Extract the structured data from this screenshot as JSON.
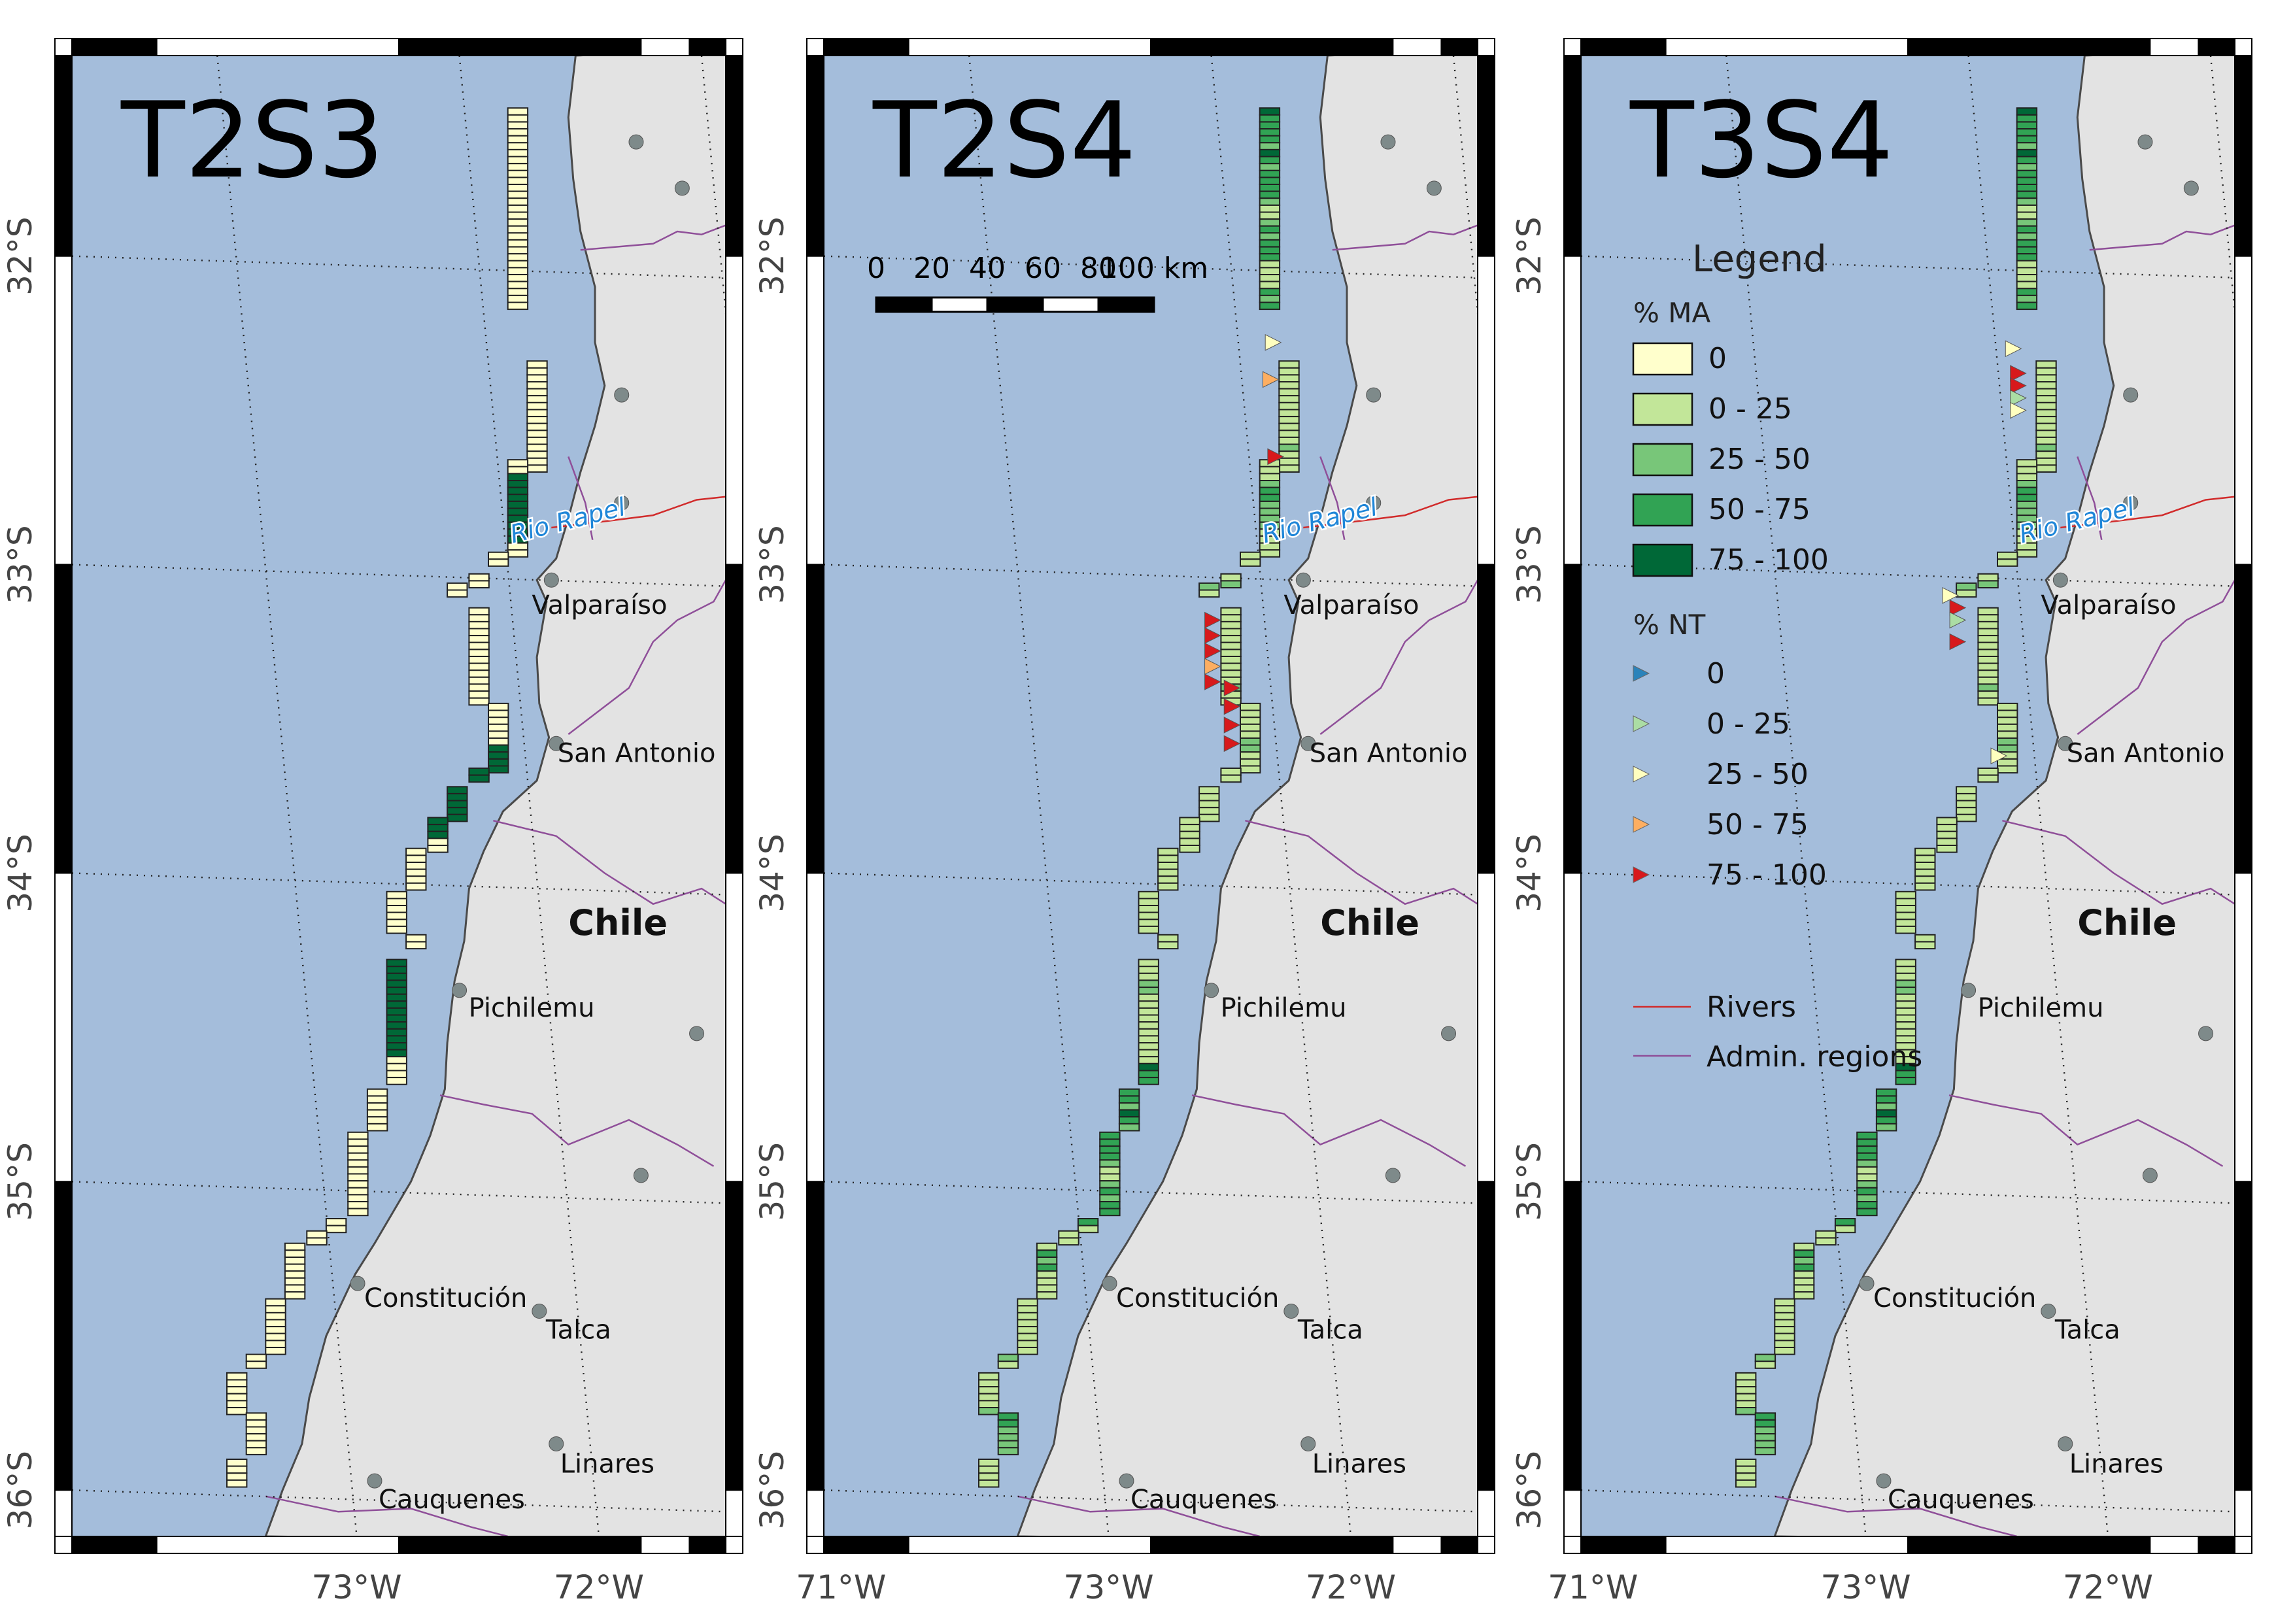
{
  "panels": [
    {
      "title": "T2S3",
      "cells": "AAAAAAAAAAAAAAAAAAAAAAAAAAAAAAAAAAAAAAAAAAAAAAAEEEEEEEEEEAAAAAAAAAAAAAAAAAAAAAAAAAAAAEEEEEEEEEEEEEEAAAAAAAAAAAAAAAAEEEEEEEEEEEEEEAAAAAAAAAAAAAAAAAAAAAAAAAAAAAAAAAAAAAAAAAAAAAAAAAAAAAAAAAAAAAA",
      "nt_markers": []
    },
    {
      "title": "T2S4",
      "cells": "EDDDDCEDCDDDDCBBCDCDDDBBBBDCDBBBBBBBBBBBBCBBBBBBCDDCCCCBBBBBBBCCBBBBBBBBBBBBCBBBBBBBCCBBBBBBBBBBBBBBBBBBBBBBBBBBBBBBBBCCBBBBBBBBBB",
      "nt_markers": [
        {
          "lon": -71.75,
          "lat": -32.28,
          "cls": 2
        },
        {
          "lon": -71.76,
          "lat": -32.4,
          "cls": 3
        },
        {
          "lon": -71.74,
          "lat": -32.65,
          "cls": 4
        },
        {
          "lon": -72.0,
          "lat": -33.18,
          "cls": 4
        },
        {
          "lon": -72.0,
          "lat": -33.23,
          "cls": 4
        },
        {
          "lon": -72.0,
          "lat": -33.28,
          "cls": 4
        },
        {
          "lon": -72.0,
          "lat": -33.33,
          "cls": 3
        },
        {
          "lon": -72.0,
          "lat": -33.38,
          "cls": 4
        },
        {
          "lon": -71.92,
          "lat": -33.4,
          "cls": 4
        },
        {
          "lon": -71.92,
          "lat": -33.46,
          "cls": 4
        },
        {
          "lon": -71.92,
          "lat": -33.52,
          "cls": 4
        },
        {
          "lon": -71.92,
          "lat": -33.58,
          "cls": 4
        }
      ]
    },
    {
      "title": "T3S4",
      "cells": "EDDDDCEDCDDDDCBBCDCDDDBBBBDCDBBBBBBBBBBBBCBBBBBBCDDCCCCBBBBBBBCCBBBBBBBBBBBBCBBBBBBBCCBBBBBBBBBBBBBBBBBBBBBBBBBBBBBBBBCCBBBBBBBBBB",
      "nt_markers": [
        {
          "lon": -71.82,
          "lat": -32.3,
          "cls": 2
        },
        {
          "lon": -71.8,
          "lat": -32.38,
          "cls": 4
        },
        {
          "lon": -71.8,
          "lat": -32.42,
          "cls": 4
        },
        {
          "lon": -71.8,
          "lat": -32.46,
          "cls": 1
        },
        {
          "lon": -71.8,
          "lat": -32.5,
          "cls": 2
        },
        {
          "lon": -72.08,
          "lat": -33.1,
          "cls": 2
        },
        {
          "lon": -72.05,
          "lat": -33.14,
          "cls": 4
        },
        {
          "lon": -72.05,
          "lat": -33.18,
          "cls": 1
        },
        {
          "lon": -72.05,
          "lat": -33.25,
          "cls": 4
        },
        {
          "lon": -71.88,
          "lat": -33.62,
          "cls": 2
        }
      ]
    }
  ],
  "axes": {
    "lon_ticks": [
      {
        "value": -73,
        "label": "73°W"
      },
      {
        "value": -72,
        "label": "72°W"
      },
      {
        "value": -71,
        "label": "71°W"
      }
    ],
    "lat_ticks": [
      {
        "value": -32,
        "label": "32°S"
      },
      {
        "value": -33,
        "label": "33°S"
      },
      {
        "value": -34,
        "label": "34°S"
      },
      {
        "value": -35,
        "label": "35°S"
      },
      {
        "value": -36,
        "label": "36°S"
      }
    ]
  },
  "cities": [
    {
      "name": "Valparaíso",
      "lon": -71.62,
      "lat": -33.05,
      "labeled": true
    },
    {
      "name": "San Antonio",
      "lon": -71.6,
      "lat": -33.58,
      "labeled": true
    },
    {
      "name": "Pichilemu",
      "lon": -72.0,
      "lat": -34.38,
      "labeled": true
    },
    {
      "name": "Constitución",
      "lon": -72.42,
      "lat": -35.33,
      "labeled": true
    },
    {
      "name": "Talca",
      "lon": -71.67,
      "lat": -35.42,
      "labeled": true
    },
    {
      "name": "Linares",
      "lon": -71.6,
      "lat": -35.85,
      "labeled": true
    },
    {
      "name": "Cauquenes",
      "lon": -72.35,
      "lat": -35.97,
      "labeled": true
    },
    {
      "name": "",
      "lon": -71.27,
      "lat": -31.63,
      "labeled": false
    },
    {
      "name": "",
      "lon": -71.08,
      "lat": -31.78,
      "labeled": false
    },
    {
      "name": "",
      "lon": -71.33,
      "lat": -32.45,
      "labeled": false
    },
    {
      "name": "",
      "lon": -71.33,
      "lat": -32.8,
      "labeled": false
    },
    {
      "name": "",
      "lon": -71.02,
      "lat": -34.52,
      "labeled": false
    },
    {
      "name": "",
      "lon": -71.25,
      "lat": -34.98,
      "labeled": false
    }
  ],
  "labels": {
    "country": "Chile",
    "river": "Rio Rapel"
  },
  "scalebar": {
    "ticks": [
      "0",
      "20",
      "40",
      "60",
      "80",
      "100 km"
    ]
  },
  "legend": {
    "title": "Legend",
    "ma_title": "% MA",
    "ma_items": [
      "0",
      "0 - 25",
      "25 - 50",
      "50 - 75",
      "75 - 100"
    ],
    "nt_title": "% NT",
    "nt_items": [
      "0",
      "0 - 25",
      "25 - 50",
      "50 - 75",
      "75 - 100"
    ],
    "rivers_label": "Rivers",
    "regions_label": "Admin. regions"
  },
  "colors": {
    "sea": "#a4bddb",
    "land": "#e3e3e3",
    "coast": "#4a4a4a",
    "river": "#d12b2b",
    "regions": "#8f4f99",
    "city_dot": "#7e8a8a",
    "river_label": "#1f86d8",
    "ma": [
      "#ffffcc",
      "#c2e699",
      "#78c679",
      "#31a354",
      "#006837"
    ],
    "nt": [
      "#2b83ba",
      "#abdda4",
      "#ffffbf",
      "#fdae61",
      "#d7191c"
    ]
  }
}
